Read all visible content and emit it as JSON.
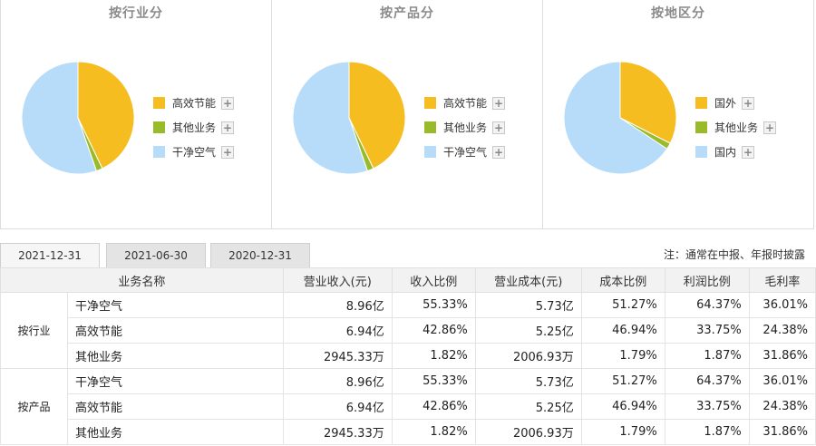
{
  "panels": [
    {
      "title": "按行业分",
      "slices": [
        {
          "label": "高效节能",
          "value": 42.86,
          "color": "#f5bd1f"
        },
        {
          "label": "其他业务",
          "value": 1.82,
          "color": "#99bb2a"
        },
        {
          "label": "干净空气",
          "value": 55.33,
          "color": "#b7dcf9"
        }
      ]
    },
    {
      "title": "按产品分",
      "slices": [
        {
          "label": "高效节能",
          "value": 42.86,
          "color": "#f5bd1f"
        },
        {
          "label": "其他业务",
          "value": 1.82,
          "color": "#99bb2a"
        },
        {
          "label": "干净空气",
          "value": 55.33,
          "color": "#b7dcf9"
        }
      ]
    },
    {
      "title": "按地区分",
      "slices": [
        {
          "label": "国外",
          "value": 32.5,
          "color": "#f5bd1f"
        },
        {
          "label": "其他业务",
          "value": 1.82,
          "color": "#99bb2a"
        },
        {
          "label": "国内",
          "value": 65.68,
          "color": "#b7dcf9"
        }
      ]
    }
  ],
  "plus_glyph": "+",
  "tabs": [
    "2021-12-31",
    "2021-06-30",
    "2020-12-31"
  ],
  "note": "注：通常在中报、年报时披露",
  "table": {
    "headers": [
      "业务名称",
      "营业收入(元)",
      "收入比例",
      "营业成本(元)",
      "成本比例",
      "利润比例",
      "毛利率"
    ],
    "groups": [
      {
        "label": "按行业",
        "rows": [
          [
            "干净空气",
            "8.96亿",
            "55.33%",
            "5.73亿",
            "51.27%",
            "64.37%",
            "36.01%"
          ],
          [
            "高效节能",
            "6.94亿",
            "42.86%",
            "5.25亿",
            "46.94%",
            "33.75%",
            "24.38%"
          ],
          [
            "其他业务",
            "2945.33万",
            "1.82%",
            "2006.93万",
            "1.79%",
            "1.87%",
            "31.86%"
          ]
        ]
      },
      {
        "label": "按产品",
        "rows": [
          [
            "干净空气",
            "8.96亿",
            "55.33%",
            "5.73亿",
            "51.27%",
            "64.37%",
            "36.01%"
          ],
          [
            "高效节能",
            "6.94亿",
            "42.86%",
            "5.25亿",
            "46.94%",
            "33.75%",
            "24.38%"
          ],
          [
            "其他业务",
            "2945.33万",
            "1.82%",
            "2006.93万",
            "1.79%",
            "1.87%",
            "31.86%"
          ]
        ]
      }
    ]
  }
}
